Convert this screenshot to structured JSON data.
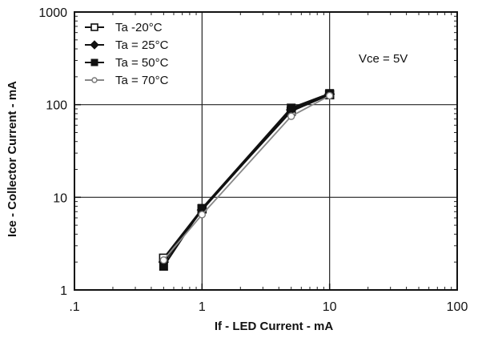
{
  "chart_data": {
    "type": "line",
    "xscale": "log",
    "yscale": "log",
    "xlim": [
      0.1,
      100
    ],
    "ylim": [
      1,
      1000
    ],
    "grid": true,
    "legend_position": "top-left",
    "xlabel": "If - LED Current - mA",
    "ylabel": "Ice - Collector Current - mA",
    "x_ticks": [
      ".1",
      "1",
      "10",
      "100"
    ],
    "y_ticks": [
      "1",
      "10",
      "100",
      "1000"
    ],
    "annotation": "Vce =  5V",
    "x": [
      0.5,
      1,
      5,
      10
    ],
    "series": [
      {
        "name": "Ta -20°C",
        "marker": "open-square",
        "values": [
          2.2,
          7.5,
          85,
          128
        ]
      },
      {
        "name": "Ta = 25°C",
        "marker": "diamond",
        "values": [
          2.0,
          7.3,
          88,
          130
        ]
      },
      {
        "name": "Ta = 50°C",
        "marker": "filled-square",
        "values": [
          1.8,
          7.6,
          92,
          132
        ]
      },
      {
        "name": "Ta = 70°C",
        "marker": "open-circle",
        "values": [
          2.1,
          6.5,
          75,
          125
        ]
      }
    ]
  }
}
